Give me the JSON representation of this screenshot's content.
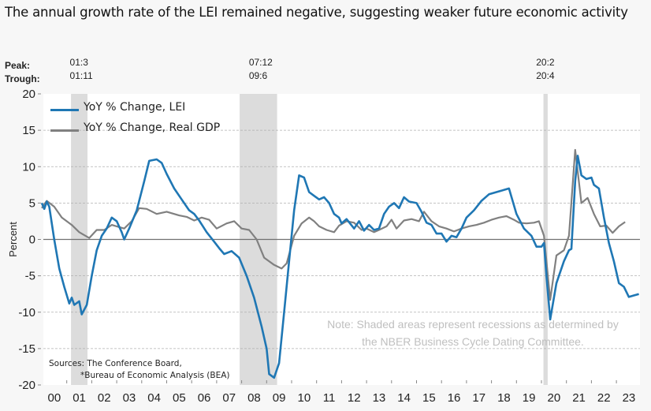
{
  "title": "The annual growth rate of the LEI remained negative, suggesting weaker future economic activity",
  "peak_label": "Peak:",
  "trough_label": "Trough:",
  "recessions": [
    {
      "peak": "01:3",
      "trough": "01:11",
      "start": 2001.17,
      "end": 2001.83
    },
    {
      "peak": "07:12",
      "trough": "09:6",
      "start": 2007.92,
      "end": 2009.42
    },
    {
      "peak": "20:2",
      "trough": "20:4",
      "start": 2020.08,
      "end": 2020.25
    }
  ],
  "note_line1": "Note: Shaded areas represent recessions as determined by",
  "note_line2": "the NBER Business Cycle Dating Committee.",
  "sources_line1": "Sources: The Conference Board,",
  "sources_line2": "*Bureau of Economic Analysis (BEA)",
  "chart_data": {
    "type": "line",
    "title": "The annual growth rate of the LEI remained negative, suggesting weaker future economic activity",
    "xlabel": "",
    "ylabel": "Percent",
    "ylim": [
      -20,
      20
    ],
    "xlim": [
      2000,
      2023.9
    ],
    "yticks": [
      20,
      15,
      10,
      5,
      0,
      -5,
      -10,
      -15,
      -20
    ],
    "xtick_labels": [
      "00",
      "01",
      "02",
      "03",
      "04",
      "05",
      "06",
      "07",
      "08",
      "09",
      "10",
      "11",
      "12",
      "13",
      "14",
      "15",
      "16",
      "17",
      "18",
      "19",
      "20",
      "21",
      "22",
      "23"
    ],
    "grid": true,
    "legend_position": "top-left",
    "series": [
      {
        "name": "YoY % Change, LEI",
        "color": "#1f77b4",
        "x": [
          2000.0,
          2000.1,
          2000.2,
          2000.3,
          2000.5,
          2000.7,
          2000.9,
          2001.1,
          2001.2,
          2001.3,
          2001.5,
          2001.6,
          2001.8,
          2002.0,
          2002.2,
          2002.4,
          2002.6,
          2002.8,
          2003.0,
          2003.2,
          2003.3,
          2003.5,
          2003.8,
          2004.1,
          2004.3,
          2004.6,
          2004.8,
          2005.0,
          2005.3,
          2005.6,
          2005.9,
          2006.1,
          2006.3,
          2006.6,
          2006.9,
          2007.1,
          2007.3,
          2007.6,
          2007.9,
          2008.2,
          2008.5,
          2008.8,
          2009.0,
          2009.1,
          2009.3,
          2009.5,
          2009.7,
          2009.9,
          2010.1,
          2010.3,
          2010.5,
          2010.7,
          2010.9,
          2011.1,
          2011.3,
          2011.5,
          2011.7,
          2011.9,
          2012.0,
          2012.2,
          2012.5,
          2012.7,
          2012.9,
          2013.1,
          2013.3,
          2013.5,
          2013.7,
          2013.9,
          2014.1,
          2014.3,
          2014.5,
          2014.7,
          2015.0,
          2015.2,
          2015.4,
          2015.6,
          2015.8,
          2016.0,
          2016.2,
          2016.4,
          2016.6,
          2016.8,
          2017.0,
          2017.3,
          2017.6,
          2017.9,
          2018.2,
          2018.5,
          2018.7,
          2019.0,
          2019.3,
          2019.6,
          2019.8,
          2020.0,
          2020.1,
          2020.2,
          2020.35,
          2020.6,
          2020.9,
          2021.1,
          2021.2,
          2021.35,
          2021.45,
          2021.6,
          2021.8,
          2022.0,
          2022.1,
          2022.3,
          2022.5,
          2022.7,
          2022.9,
          2023.1,
          2023.3,
          2023.5,
          2023.7,
          2023.9
        ],
        "values": [
          5,
          4.2,
          5.2,
          4.5,
          0,
          -4,
          -6.5,
          -8.8,
          -8,
          -9,
          -8.5,
          -10.3,
          -9,
          -5,
          -1.5,
          0.5,
          1.5,
          3,
          2.5,
          1,
          0,
          1.5,
          4,
          8,
          10.8,
          11,
          10.5,
          9,
          7,
          5.5,
          4,
          3.5,
          2.6,
          1,
          -0.3,
          -1.2,
          -2,
          -1.6,
          -2.5,
          -5,
          -8,
          -12,
          -15,
          -18.5,
          -19,
          -17,
          -10,
          -3,
          4,
          8.8,
          8.5,
          6.5,
          6,
          5.5,
          5.8,
          5,
          3.5,
          3,
          2.2,
          2.8,
          1.5,
          2.5,
          1.2,
          2,
          1.3,
          1.5,
          3.5,
          4.5,
          5,
          4.3,
          5.8,
          5.2,
          5,
          3.8,
          2.3,
          2,
          0.8,
          0.8,
          -0.3,
          0.5,
          0.3,
          1.5,
          3,
          4,
          5.3,
          6.2,
          6.5,
          6.8,
          7,
          3.5,
          1.5,
          0.5,
          -1,
          -1,
          -0.5,
          -5,
          -11,
          -6,
          -3,
          -1.5,
          -1.3,
          8,
          11.5,
          8.8,
          8.3,
          8.5,
          7.5,
          7,
          3,
          -0.5,
          -3,
          -6,
          -6.5,
          -7.9,
          -7.7,
          -7.5
        ]
      },
      {
        "name": "YoY % Change, Real GDP",
        "color": "#808080",
        "x": [
          2000.0,
          2000.2,
          2000.5,
          2000.8,
          2001.2,
          2001.5,
          2001.9,
          2002.2,
          2002.5,
          2002.8,
          2003.0,
          2003.3,
          2003.6,
          2003.9,
          2004.2,
          2004.6,
          2005.0,
          2005.5,
          2005.8,
          2006.1,
          2006.4,
          2006.7,
          2007.0,
          2007.4,
          2007.7,
          2008.0,
          2008.3,
          2008.6,
          2008.9,
          2009.3,
          2009.6,
          2009.8,
          2010.1,
          2010.4,
          2010.7,
          2010.9,
          2011.1,
          2011.4,
          2011.7,
          2011.9,
          2012.2,
          2012.5,
          2012.8,
          2013.0,
          2013.3,
          2013.5,
          2013.8,
          2014.0,
          2014.2,
          2014.5,
          2014.8,
          2015.1,
          2015.3,
          2015.6,
          2015.9,
          2016.2,
          2016.5,
          2016.8,
          2017.1,
          2017.4,
          2017.7,
          2018.0,
          2018.3,
          2018.6,
          2018.9,
          2019.1,
          2019.4,
          2019.7,
          2019.9,
          2020.1,
          2020.35,
          2020.6,
          2020.9,
          2021.1,
          2021.35,
          2021.6,
          2021.85,
          2022.1,
          2022.35,
          2022.6,
          2022.85,
          2023.1,
          2023.35
        ],
        "values": [
          4.3,
          5.3,
          4.5,
          3,
          2,
          1,
          0.2,
          1.3,
          1.3,
          2,
          1.8,
          1.5,
          2.5,
          4.3,
          4.2,
          3.5,
          3.8,
          3.3,
          3.1,
          2.6,
          3,
          2.7,
          1.5,
          2.2,
          2.5,
          1.5,
          1.3,
          0,
          -2.5,
          -3.5,
          -4,
          -3.3,
          0.5,
          2.2,
          3,
          2.5,
          1.8,
          1.3,
          1,
          1.9,
          2.5,
          2.3,
          1.3,
          1.5,
          1,
          1.3,
          1.8,
          2.7,
          1.5,
          2.6,
          2.8,
          2.5,
          3.8,
          2.5,
          1.8,
          1.5,
          1.1,
          1.5,
          1.8,
          2,
          2.3,
          2.7,
          3,
          3.2,
          2.7,
          2.3,
          2.2,
          2.3,
          2.5,
          0.5,
          -8.3,
          -2.2,
          -1.5,
          0.5,
          12.3,
          5,
          5.7,
          3.5,
          1.8,
          1.9,
          0.9,
          1.8,
          2.4
        ]
      }
    ],
    "annotations": [
      "Note: Shaded areas represent recessions as determined by the NBER Business Cycle Dating Committee.",
      "Sources: The Conference Board, *Bureau of Economic Analysis (BEA)"
    ]
  }
}
